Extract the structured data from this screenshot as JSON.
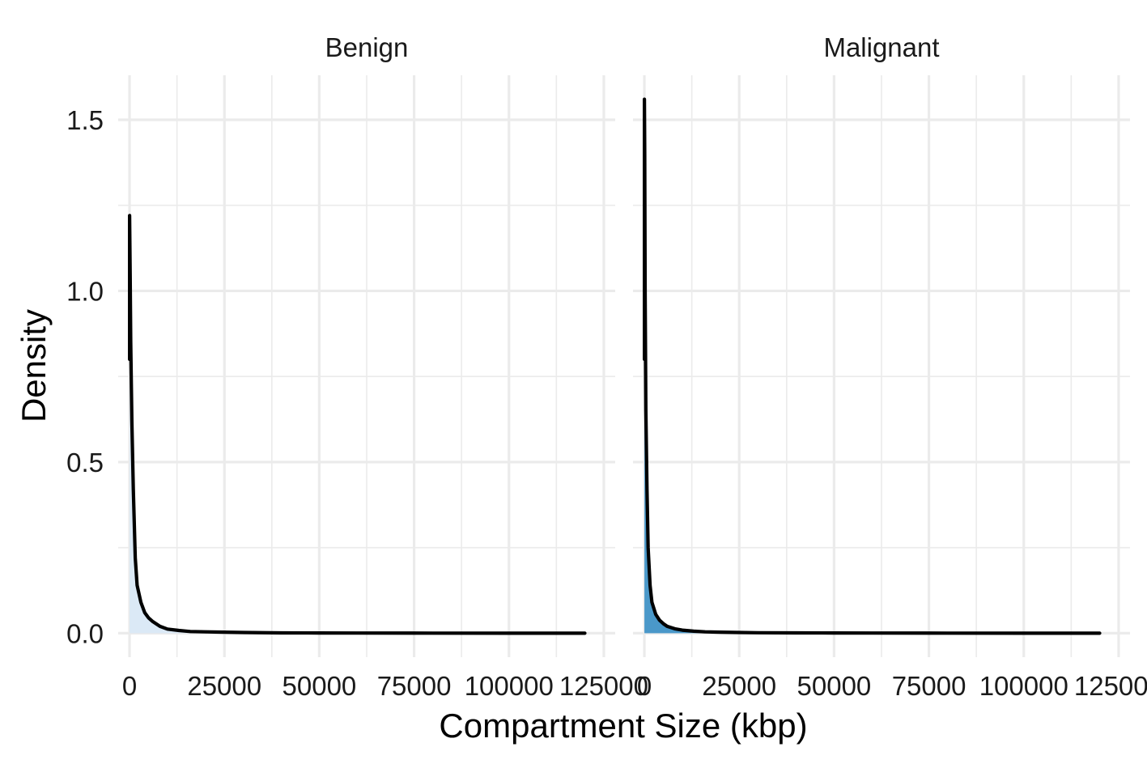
{
  "chart_data": {
    "type": "area",
    "xlabel": "Compartment Size (kbp)",
    "ylabel": "Density",
    "xlim": [
      -3000,
      128000
    ],
    "ylim": [
      -0.07,
      1.63
    ],
    "x_ticks": [
      0,
      25000,
      50000,
      75000,
      100000,
      125000
    ],
    "x_tick_labels": [
      "0",
      "25000",
      "50000",
      "75000",
      "100000",
      "125000"
    ],
    "y_ticks": [
      0.0,
      0.5,
      1.0,
      1.5
    ],
    "y_tick_labels": [
      "0.0",
      "0.5",
      "1.0",
      "1.5"
    ],
    "grid": true,
    "facets": [
      {
        "label": "Benign",
        "fill_color": "#dbe9f6",
        "line_color": "#000000",
        "x": [
          0,
          150,
          300,
          600,
          1000,
          1500,
          2000,
          3000,
          4000,
          5000,
          6000,
          8000,
          10000,
          13000,
          16000,
          20000,
          25000,
          30000,
          40000,
          50000,
          60000,
          80000,
          100000,
          120000
        ],
        "y": [
          1.22,
          1.05,
          0.85,
          0.62,
          0.42,
          0.22,
          0.14,
          0.09,
          0.06,
          0.045,
          0.035,
          0.02,
          0.012,
          0.008,
          0.005,
          0.004,
          0.003,
          0.002,
          0.001,
          0.0008,
          0.0005,
          0.0003,
          0.0001,
          0.0
        ]
      },
      {
        "label": "Malignant",
        "fill_color": "#4a98c9",
        "line_color": "#000000",
        "x": [
          0,
          100,
          200,
          400,
          700,
          1000,
          1500,
          2000,
          3000,
          4000,
          5000,
          6000,
          8000,
          10000,
          13000,
          16000,
          20000,
          25000,
          30000,
          40000,
          50000,
          60000,
          80000,
          100000,
          120000
        ],
        "y": [
          1.56,
          1.4,
          1.0,
          0.65,
          0.42,
          0.25,
          0.14,
          0.09,
          0.055,
          0.038,
          0.028,
          0.02,
          0.013,
          0.009,
          0.006,
          0.004,
          0.003,
          0.002,
          0.0015,
          0.001,
          0.0007,
          0.0005,
          0.0003,
          0.0001,
          0.0
        ]
      }
    ]
  }
}
